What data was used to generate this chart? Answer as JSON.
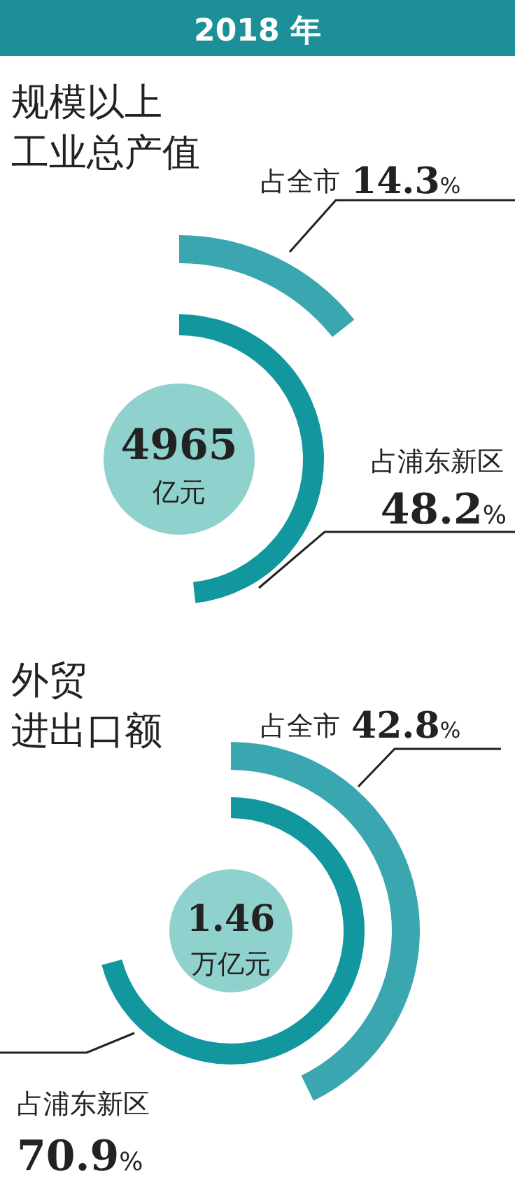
{
  "chart_data": [
    {
      "type": "other",
      "title": "2018 年",
      "subtitle": "规模以上工业总产值",
      "categories": [
        "占全市",
        "占浦东新区"
      ],
      "values": [
        14.3,
        48.2
      ],
      "value_labels": [
        "14.3%",
        "48.2%"
      ],
      "colors": [
        "#3aa7b0",
        "#12979e"
      ],
      "annotations": [
        "4965",
        "亿元"
      ]
    },
    {
      "type": "other",
      "subtitle": "外贸进出口额",
      "categories": [
        "占全市",
        "占浦东新区"
      ],
      "values": [
        42.8,
        70.9
      ],
      "value_labels": [
        "42.8%",
        "70.9%"
      ],
      "colors": [
        "#3aa7b0",
        "#12979e"
      ],
      "annotations": [
        "1.46",
        "万亿元"
      ]
    }
  ]
}
